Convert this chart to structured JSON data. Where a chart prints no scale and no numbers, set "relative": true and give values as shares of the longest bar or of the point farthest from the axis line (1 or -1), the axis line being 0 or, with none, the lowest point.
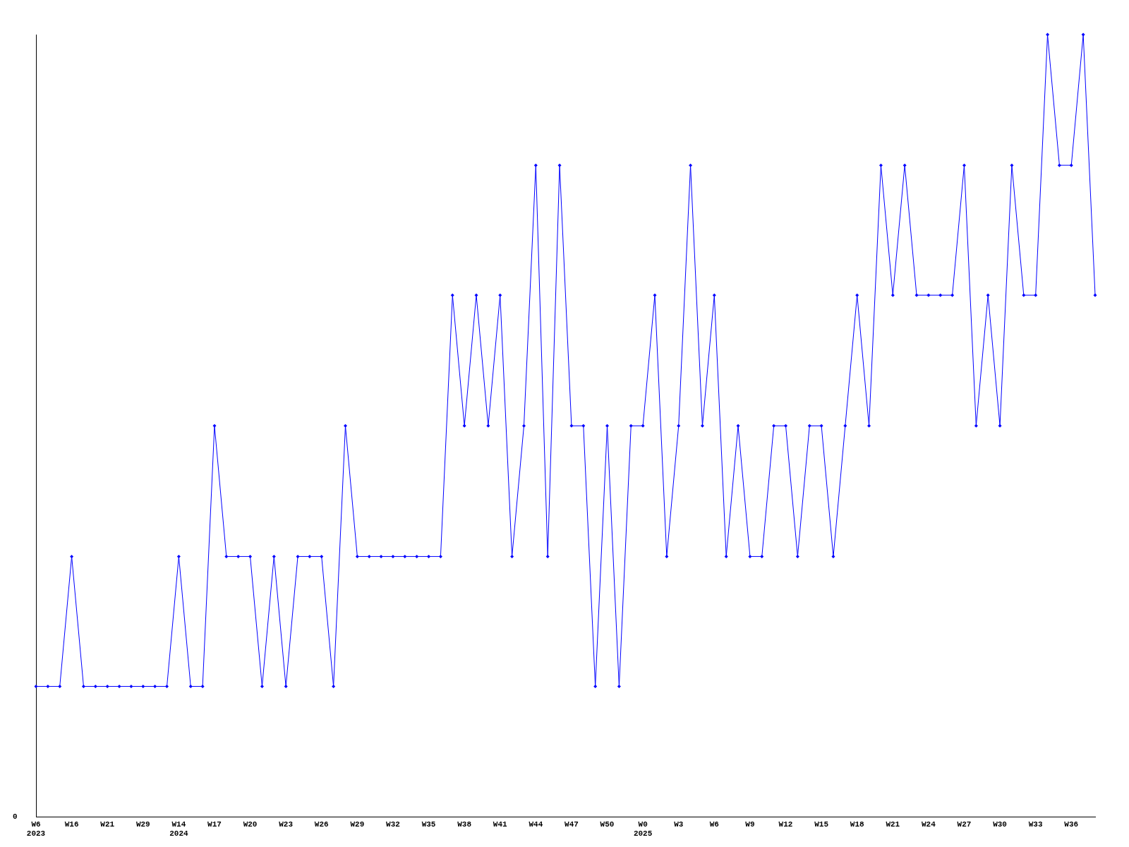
{
  "chart_data": {
    "type": "line",
    "relative": true,
    "annotations": [
      "0"
    ],
    "marker": "diamond",
    "line_style": "solid",
    "grid": false,
    "legend": false,
    "categories": [
      "W6\n2023",
      null,
      null,
      "W16",
      null,
      null,
      "W21",
      null,
      null,
      "W29",
      null,
      null,
      "W14\n2024",
      null,
      null,
      "W17",
      null,
      null,
      "W20",
      null,
      null,
      "W23",
      null,
      null,
      "W26",
      null,
      null,
      "W29",
      null,
      null,
      "W32",
      null,
      null,
      "W35",
      null,
      null,
      "W38",
      null,
      null,
      "W41",
      null,
      null,
      "W44",
      null,
      null,
      "W47",
      null,
      null,
      "W50",
      null,
      null,
      "W0\n2025",
      null,
      null,
      "W3",
      null,
      null,
      "W6",
      null,
      null,
      "W9",
      null,
      null,
      "W12",
      null,
      null,
      "W15",
      null,
      null,
      "W18",
      null,
      null,
      "W21",
      null,
      null,
      "W24",
      null,
      null,
      "W27",
      null,
      null,
      "W30",
      null,
      null,
      "W33",
      null,
      null,
      "W36",
      null,
      null
    ],
    "series": [
      {
        "color": "#0000ff",
        "values": [
          0.167,
          0.167,
          0.167,
          0.333,
          0.167,
          0.167,
          0.167,
          0.167,
          0.167,
          0.167,
          0.167,
          0.167,
          0.333,
          0.167,
          0.167,
          0.5,
          0.333,
          0.333,
          0.333,
          0.167,
          0.333,
          0.167,
          0.333,
          0.333,
          0.333,
          0.167,
          0.5,
          0.333,
          0.333,
          0.333,
          0.333,
          0.333,
          0.333,
          0.333,
          0.333,
          0.667,
          0.5,
          0.667,
          0.5,
          0.667,
          0.333,
          0.5,
          0.833,
          0.333,
          0.833,
          0.5,
          0.5,
          0.167,
          0.5,
          0.167,
          0.5,
          0.5,
          0.667,
          0.333,
          0.5,
          0.833,
          0.5,
          0.667,
          0.333,
          0.5,
          0.333,
          0.333,
          0.5,
          0.5,
          0.333,
          0.5,
          0.5,
          0.333,
          0.5,
          0.667,
          0.5,
          0.833,
          0.667,
          0.833,
          0.667,
          0.667,
          0.667,
          0.667,
          0.833,
          0.5,
          0.667,
          0.5,
          0.833,
          0.667,
          0.667,
          1,
          0.833,
          0.833,
          1,
          0.667
        ]
      }
    ]
  }
}
